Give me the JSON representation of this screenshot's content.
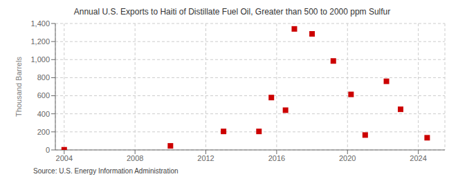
{
  "chart_data": {
    "type": "scatter",
    "title": "Annual U.S. Exports to Haiti of Distillate Fuel Oil, Greater than 500 to 2000 ppm Sulfur",
    "ylabel": "Thousand Barrels",
    "annotations": [
      "Source: U.S. Energy Information Administration"
    ],
    "x": [
      2004,
      2010,
      2013,
      2015,
      2015.7,
      2016.5,
      2017,
      2018,
      2019.2,
      2020.2,
      2021,
      2022.2,
      2023,
      2024.5
    ],
    "values": [
      2,
      45,
      205,
      205,
      580,
      440,
      1340,
      1285,
      985,
      615,
      165,
      760,
      450,
      135
    ],
    "color": "#cc0000",
    "marker": "square",
    "xlim": [
      2003.5,
      2025.5
    ],
    "ylim": [
      0,
      1400
    ],
    "xticks": [
      2004,
      2008,
      2012,
      2016,
      2020,
      2024
    ],
    "yticks": [
      0,
      200,
      400,
      600,
      800,
      {
        "value": 1000,
        "label": "1,000"
      },
      {
        "value": 1200,
        "label": "1,200"
      },
      {
        "value": 1400,
        "label": "1,400"
      }
    ],
    "grid": true
  }
}
